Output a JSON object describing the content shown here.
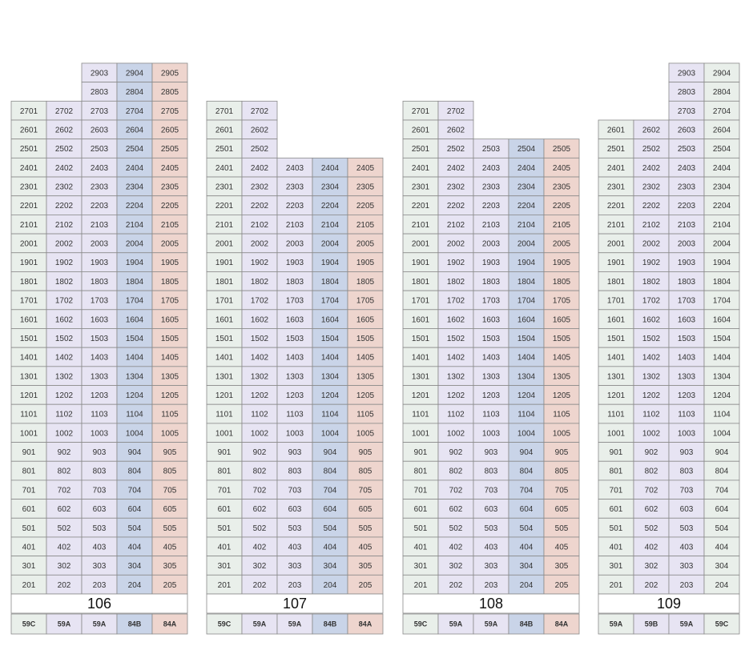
{
  "buildings": [
    {
      "name": "106",
      "colors": [
        "#e9efea",
        "#e7e4f3",
        "#e7e4f3",
        "#c9d4e8",
        "#eed5ce"
      ],
      "types": [
        "59C",
        "59A",
        "59A",
        "84B",
        "84A"
      ],
      "rows": [
        [
          null,
          null,
          2903,
          2904,
          2905
        ],
        [
          null,
          null,
          2803,
          2804,
          2805
        ],
        [
          2701,
          2702,
          2703,
          2704,
          2705
        ],
        [
          2601,
          2602,
          2603,
          2604,
          2605
        ],
        [
          2501,
          2502,
          2503,
          2504,
          2505
        ],
        [
          2401,
          2402,
          2403,
          2404,
          2405
        ],
        [
          2301,
          2302,
          2303,
          2304,
          2305
        ],
        [
          2201,
          2202,
          2203,
          2204,
          2205
        ],
        [
          2101,
          2102,
          2103,
          2104,
          2105
        ],
        [
          2001,
          2002,
          2003,
          2004,
          2005
        ],
        [
          1901,
          1902,
          1903,
          1904,
          1905
        ],
        [
          1801,
          1802,
          1803,
          1804,
          1805
        ],
        [
          1701,
          1702,
          1703,
          1704,
          1705
        ],
        [
          1601,
          1602,
          1603,
          1604,
          1605
        ],
        [
          1501,
          1502,
          1503,
          1504,
          1505
        ],
        [
          1401,
          1402,
          1403,
          1404,
          1405
        ],
        [
          1301,
          1302,
          1303,
          1304,
          1305
        ],
        [
          1201,
          1202,
          1203,
          1204,
          1205
        ],
        [
          1101,
          1102,
          1103,
          1104,
          1105
        ],
        [
          1001,
          1002,
          1003,
          1004,
          1005
        ],
        [
          901,
          902,
          903,
          904,
          905
        ],
        [
          801,
          802,
          803,
          804,
          805
        ],
        [
          701,
          702,
          703,
          704,
          705
        ],
        [
          601,
          602,
          603,
          604,
          605
        ],
        [
          501,
          502,
          503,
          504,
          505
        ],
        [
          401,
          402,
          403,
          404,
          405
        ],
        [
          301,
          302,
          303,
          304,
          305
        ],
        [
          201,
          202,
          203,
          204,
          205
        ]
      ]
    },
    {
      "name": "107",
      "colors": [
        "#e9efea",
        "#e7e4f3",
        "#e7e4f3",
        "#c9d4e8",
        "#eed5ce"
      ],
      "types": [
        "59C",
        "59A",
        "59A",
        "84B",
        "84A"
      ],
      "rows": [
        [
          2701,
          2702,
          null,
          null,
          null
        ],
        [
          2601,
          2602,
          null,
          null,
          null
        ],
        [
          2501,
          2502,
          null,
          null,
          null
        ],
        [
          2401,
          2402,
          2403,
          2404,
          2405
        ],
        [
          2301,
          2302,
          2303,
          2304,
          2305
        ],
        [
          2201,
          2202,
          2203,
          2204,
          2205
        ],
        [
          2101,
          2102,
          2103,
          2104,
          2105
        ],
        [
          2001,
          2002,
          2003,
          2004,
          2005
        ],
        [
          1901,
          1902,
          1903,
          1904,
          1905
        ],
        [
          1801,
          1802,
          1803,
          1804,
          1805
        ],
        [
          1701,
          1702,
          1703,
          1704,
          1705
        ],
        [
          1601,
          1602,
          1603,
          1604,
          1605
        ],
        [
          1501,
          1502,
          1503,
          1504,
          1505
        ],
        [
          1401,
          1402,
          1403,
          1404,
          1405
        ],
        [
          1301,
          1302,
          1303,
          1304,
          1305
        ],
        [
          1201,
          1202,
          1203,
          1204,
          1205
        ],
        [
          1101,
          1102,
          1103,
          1104,
          1105
        ],
        [
          1001,
          1002,
          1003,
          1004,
          1005
        ],
        [
          901,
          902,
          903,
          904,
          905
        ],
        [
          801,
          802,
          803,
          804,
          805
        ],
        [
          701,
          702,
          703,
          704,
          705
        ],
        [
          601,
          602,
          603,
          604,
          605
        ],
        [
          501,
          502,
          503,
          504,
          505
        ],
        [
          401,
          402,
          403,
          404,
          405
        ],
        [
          301,
          302,
          303,
          304,
          305
        ],
        [
          201,
          202,
          203,
          204,
          205
        ]
      ]
    },
    {
      "name": "108",
      "colors": [
        "#e9efea",
        "#e7e4f3",
        "#e7e4f3",
        "#c9d4e8",
        "#eed5ce"
      ],
      "types": [
        "59C",
        "59A",
        "59A",
        "84B",
        "84A"
      ],
      "rows": [
        [
          2701,
          2702,
          null,
          null,
          null
        ],
        [
          2601,
          2602,
          null,
          null,
          null
        ],
        [
          2501,
          2502,
          2503,
          2504,
          2505
        ],
        [
          2401,
          2402,
          2403,
          2404,
          2405
        ],
        [
          2301,
          2302,
          2303,
          2304,
          2305
        ],
        [
          2201,
          2202,
          2203,
          2204,
          2205
        ],
        [
          2101,
          2102,
          2103,
          2104,
          2105
        ],
        [
          2001,
          2002,
          2003,
          2004,
          2005
        ],
        [
          1901,
          1902,
          1903,
          1904,
          1905
        ],
        [
          1801,
          1802,
          1803,
          1804,
          1805
        ],
        [
          1701,
          1702,
          1703,
          1704,
          1705
        ],
        [
          1601,
          1602,
          1603,
          1604,
          1605
        ],
        [
          1501,
          1502,
          1503,
          1504,
          1505
        ],
        [
          1401,
          1402,
          1403,
          1404,
          1405
        ],
        [
          1301,
          1302,
          1303,
          1304,
          1305
        ],
        [
          1201,
          1202,
          1203,
          1204,
          1205
        ],
        [
          1101,
          1102,
          1103,
          1104,
          1105
        ],
        [
          1001,
          1002,
          1003,
          1004,
          1005
        ],
        [
          901,
          902,
          903,
          904,
          905
        ],
        [
          801,
          802,
          803,
          804,
          805
        ],
        [
          701,
          702,
          703,
          704,
          705
        ],
        [
          601,
          602,
          603,
          604,
          605
        ],
        [
          501,
          502,
          503,
          504,
          505
        ],
        [
          401,
          402,
          403,
          404,
          405
        ],
        [
          301,
          302,
          303,
          304,
          305
        ],
        [
          201,
          202,
          203,
          204,
          205
        ]
      ]
    },
    {
      "name": "109",
      "colors": [
        "#e9efea",
        "#e7e4f3",
        "#e7e4f3",
        "#e9efea"
      ],
      "types": [
        "59A",
        "59B",
        "59A",
        "59C"
      ],
      "rows": [
        [
          null,
          null,
          2903,
          2904
        ],
        [
          null,
          null,
          2803,
          2804
        ],
        [
          null,
          null,
          2703,
          2704
        ],
        [
          2601,
          2602,
          2603,
          2604
        ],
        [
          2501,
          2502,
          2503,
          2504
        ],
        [
          2401,
          2402,
          2403,
          2404
        ],
        [
          2301,
          2302,
          2303,
          2304
        ],
        [
          2201,
          2202,
          2203,
          2204
        ],
        [
          2101,
          2102,
          2103,
          2104
        ],
        [
          2001,
          2002,
          2003,
          2004
        ],
        [
          1901,
          1902,
          1903,
          1904
        ],
        [
          1801,
          1802,
          1803,
          1804
        ],
        [
          1701,
          1702,
          1703,
          1704
        ],
        [
          1601,
          1602,
          1603,
          1604
        ],
        [
          1501,
          1502,
          1503,
          1504
        ],
        [
          1401,
          1402,
          1403,
          1404
        ],
        [
          1301,
          1302,
          1303,
          1304
        ],
        [
          1201,
          1202,
          1203,
          1204
        ],
        [
          1101,
          1102,
          1103,
          1104
        ],
        [
          1001,
          1002,
          1003,
          1004
        ],
        [
          901,
          902,
          903,
          904
        ],
        [
          801,
          802,
          803,
          804
        ],
        [
          701,
          702,
          703,
          704
        ],
        [
          601,
          602,
          603,
          604
        ],
        [
          501,
          502,
          503,
          504
        ],
        [
          401,
          402,
          403,
          404
        ],
        [
          301,
          302,
          303,
          304
        ],
        [
          201,
          202,
          203,
          204
        ]
      ]
    }
  ]
}
